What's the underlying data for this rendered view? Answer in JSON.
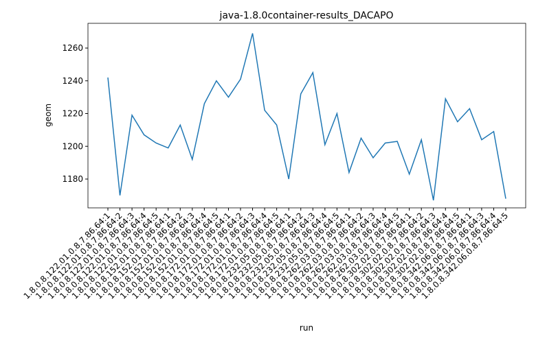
{
  "chart_data": {
    "type": "line",
    "title": "java-1.8.0container-results_DACAPO",
    "x_label": "run",
    "y_label": "geom",
    "categories": [
      "1.8.0.8.122.01.0.8.7.86.64:1",
      "1.8.0.8.122.01.0.8.7.86.64:2",
      "1.8.0.8.122.01.0.8.7.86.64:3",
      "1.8.0.8.122.01.0.8.7.86.64:4",
      "1.8.0.8.122.01.0.8.7.86.64:5",
      "1.8.0.8.152.01.0.8.7.86.64:1",
      "1.8.0.8.152.01.0.8.7.86.64:2",
      "1.8.0.8.152.01.0.8.7.86.64:3",
      "1.8.0.8.152.01.0.8.7.86.64:4",
      "1.8.0.8.152.01.0.8.7.86.64:5",
      "1.8.0.8.172.01.0.8.7.86.64:1",
      "1.8.0.8.172.01.0.8.7.86.64:2",
      "1.8.0.8.172.01.0.8.7.86.64:3",
      "1.8.0.8.172.01.0.8.7.86.64:4",
      "1.8.0.8.172.01.0.8.7.86.64:5",
      "1.8.0.8.232.05.0.8.7.86.64:1",
      "1.8.0.8.232.05.0.8.7.86.64:2",
      "1.8.0.8.232.05.0.8.7.86.64:3",
      "1.8.0.8.232.05.0.8.7.86.64:4",
      "1.8.0.8.232.05.0.8.7.86.64:5",
      "1.8.0.8.262.03.0.8.7.86.64:1",
      "1.8.0.8.262.03.0.8.7.86.64:2",
      "1.8.0.8.262.03.0.8.7.86.64:3",
      "1.8.0.8.262.03.0.8.7.86.64:4",
      "1.8.0.8.262.03.0.8.7.86.64:5",
      "1.8.0.8.302.02.0.8.7.86.64:1",
      "1.8.0.8.302.02.0.8.7.86.64:2",
      "1.8.0.8.302.02.0.8.7.86.64:3",
      "1.8.0.8.302.02.0.8.7.86.64:4",
      "1.8.0.8.302.02.0.8.7.86.64:5",
      "1.8.0.8.342.06.0.8.7.86.64:1",
      "1.8.0.8.342.06.0.8.7.86.64:3",
      "1.8.0.8.342.06.0.8.7.86.64:4",
      "1.8.0.8.342.06.0.8.7.86.64:5"
    ],
    "values": [
      1242,
      1170,
      1219,
      1207,
      1202,
      1199,
      1213,
      1192,
      1226,
      1240,
      1230,
      1241,
      1269,
      1222,
      1213,
      1180,
      1232,
      1245,
      1201,
      1220,
      1184,
      1205,
      1193,
      1202,
      1203,
      1183,
      1204,
      1167,
      1229,
      1215,
      1223,
      1204,
      1209,
      1168
    ],
    "color": "#1f77b4",
    "ylim": [
      1162.4,
      1275.1
    ],
    "yticks": [
      1180,
      1200,
      1220,
      1240,
      1260
    ]
  }
}
